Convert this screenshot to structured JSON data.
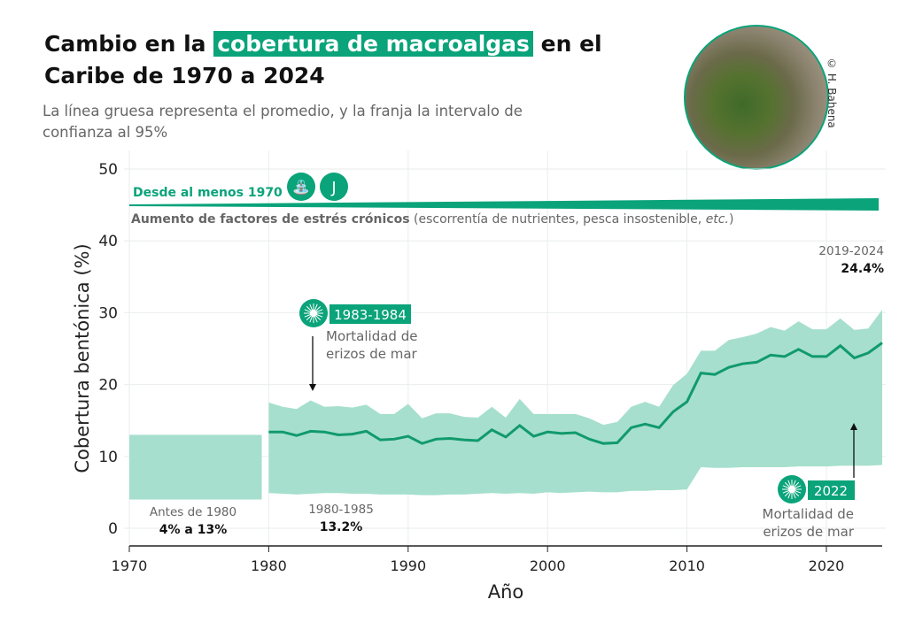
{
  "header": {
    "title_pre": "Cambio en la ",
    "title_highlight": "cobertura de macroalgas",
    "title_post": " en el Caribe de 1970 a 2024",
    "subtitle": "La línea gruesa representa el promedio, y la franja la intervalo de confianza al 95%",
    "photo_credit": "© H. Bahena"
  },
  "colors": {
    "accent": "#0aa37a",
    "band": "#a6dfcd",
    "line": "#119a6c"
  },
  "chart_data": {
    "type": "line",
    "xlabel": "Año",
    "ylabel": "Cobertura bentónica (%)",
    "xlim": [
      1970,
      2024
    ],
    "ylim": [
      -2.5,
      51
    ],
    "xticks": [
      1970,
      1980,
      1990,
      2000,
      2010,
      2020
    ],
    "yticks": [
      0,
      10,
      20,
      30,
      40,
      50
    ],
    "grid": true,
    "pre_1980_band": {
      "x": [
        1970,
        1979.5
      ],
      "low": 4,
      "high": 13
    },
    "x": [
      1980,
      1981,
      1982,
      1983,
      1984,
      1985,
      1986,
      1987,
      1988,
      1989,
      1990,
      1991,
      1992,
      1993,
      1994,
      1995,
      1996,
      1997,
      1998,
      1999,
      2000,
      2001,
      2002,
      2003,
      2004,
      2005,
      2006,
      2007,
      2008,
      2009,
      2010,
      2011,
      2012,
      2013,
      2014,
      2015,
      2016,
      2017,
      2018,
      2019,
      2020,
      2021,
      2022,
      2023,
      2024
    ],
    "mean": [
      13.4,
      13.4,
      12.9,
      13.5,
      13.4,
      13.0,
      13.1,
      13.5,
      12.3,
      12.4,
      12.8,
      11.8,
      12.4,
      12.5,
      12.3,
      12.2,
      13.7,
      12.7,
      14.3,
      12.8,
      13.4,
      13.2,
      13.3,
      12.4,
      11.8,
      11.9,
      14.0,
      14.5,
      14.0,
      16.2,
      17.6,
      21.6,
      21.4,
      22.4,
      22.9,
      23.1,
      24.1,
      23.9,
      24.9,
      23.9,
      23.9,
      25.4,
      23.7,
      24.4,
      25.8
    ],
    "upper": [
      17.5,
      16.9,
      16.6,
      17.8,
      16.9,
      17.0,
      16.8,
      17.2,
      15.9,
      15.9,
      17.3,
      15.3,
      16.0,
      16.0,
      15.5,
      15.4,
      16.9,
      15.4,
      18.0,
      15.9,
      15.9,
      15.9,
      15.9,
      15.3,
      14.4,
      14.8,
      16.9,
      17.6,
      16.9,
      19.9,
      21.5,
      24.7,
      24.7,
      26.2,
      26.6,
      27.1,
      28.0,
      27.5,
      28.8,
      27.7,
      27.7,
      29.2,
      27.6,
      27.8,
      30.4
    ],
    "lower": [
      4.9,
      4.8,
      4.7,
      4.8,
      4.9,
      4.9,
      4.8,
      4.8,
      4.7,
      4.7,
      4.7,
      4.6,
      4.6,
      4.7,
      4.7,
      4.8,
      4.9,
      4.8,
      4.9,
      4.8,
      5.0,
      4.9,
      5.0,
      5.1,
      5.0,
      5.0,
      5.2,
      5.2,
      5.3,
      5.3,
      5.4,
      8.5,
      8.4,
      8.4,
      8.5,
      8.5,
      8.5,
      8.5,
      8.6,
      8.6,
      8.6,
      8.7,
      8.7,
      8.7,
      8.8
    ],
    "annotations": {
      "stress_label": "Desde al menos 1970",
      "stress_bold": "Aumento de factores de estrés crónicos",
      "stress_rest": " (escorrentía de nutrientes, pesca insostenible, ",
      "stress_etc": "etc.",
      "stress_close": ")",
      "event1_year": "1983-1984",
      "event1_text1": "Mortalidad de",
      "event1_text2": "erizos de mar",
      "event2_year": "2022",
      "event2_text1": "Mortalidad de",
      "event2_text2": "erizos de mar",
      "pre_label": "Antes de 1980",
      "pre_value": "4% a 13%",
      "p1_label": "1980-1985",
      "p1_value": "13.2%",
      "p2_label": "2019-2024",
      "p2_value": "24.4%"
    }
  }
}
